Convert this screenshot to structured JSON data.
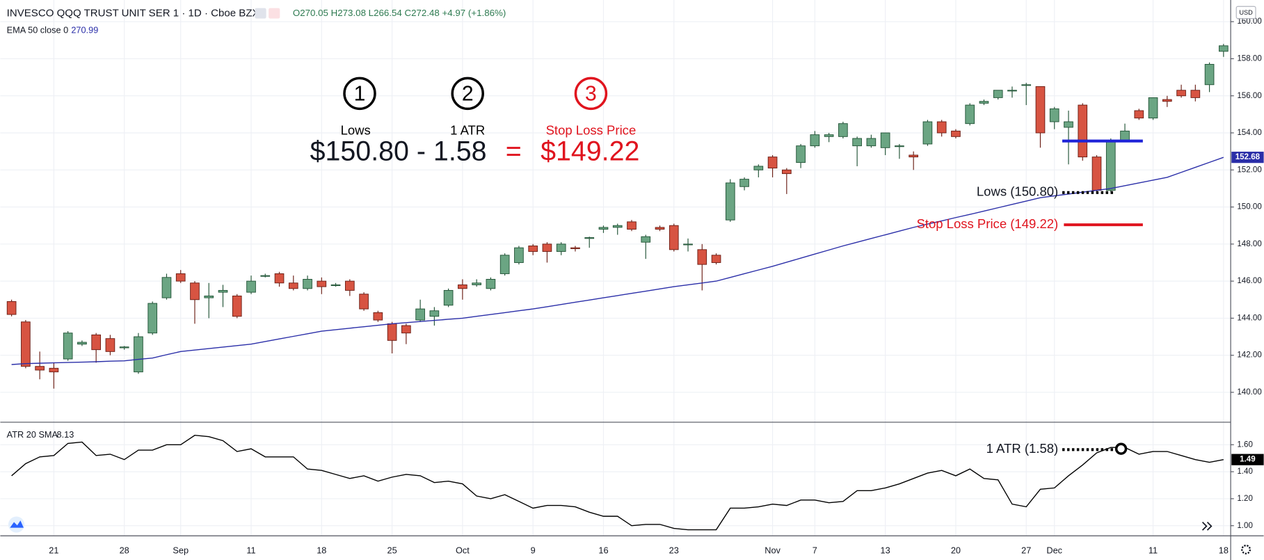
{
  "chart_data": [
    {
      "type": "candlestick",
      "title": "INVESCO QQQ TRUST UNIT SER 1 · 1D · Cboe BZX",
      "ohlc_legend": "O270.05 H273.08 L266.54 C272.48 +4.97 (+1.86%)",
      "currency": "USD",
      "indicator_legend": {
        "name": "EMA 50 close 0",
        "value": "270.99"
      },
      "categories": [
        null,
        null,
        null,
        "21",
        null,
        null,
        null,
        null,
        "28",
        null,
        null,
        null,
        "Sep",
        null,
        null,
        null,
        null,
        "11",
        null,
        null,
        null,
        null,
        "18",
        null,
        null,
        null,
        null,
        "25",
        null,
        null,
        null,
        null,
        "Oct",
        null,
        null,
        null,
        null,
        "9",
        null,
        null,
        null,
        null,
        "16",
        null,
        null,
        null,
        null,
        "23",
        null,
        null,
        null,
        null,
        null,
        null,
        "Nov",
        null,
        null,
        "7",
        null,
        null,
        null,
        null,
        "13",
        null,
        null,
        null,
        null,
        "20",
        null,
        null,
        null,
        null,
        "27",
        null,
        "Dec",
        null,
        null,
        null,
        null,
        null,
        null,
        "11",
        null,
        null,
        null,
        null,
        "18"
      ],
      "open": [
        144.9,
        143.8,
        141.4,
        141.3,
        141.8,
        142.6,
        143.1,
        142.9,
        142.4,
        141.1,
        143.2,
        145.1,
        146.4,
        145.9,
        145.1,
        145.4,
        145.2,
        145.4,
        146.3,
        146.4,
        145.9,
        145.6,
        146.0,
        145.8,
        146.0,
        145.3,
        144.3,
        143.7,
        143.6,
        143.9,
        144.1,
        144.7,
        145.8,
        145.8,
        145.6,
        146.4,
        147.0,
        147.9,
        148.0,
        147.6,
        147.8,
        148.3,
        148.8,
        148.9,
        149.2,
        148.1,
        148.9,
        149.0,
        148.0,
        147.7,
        147.4,
        149.3,
        151.1,
        152.0,
        152.7,
        152.0,
        152.4,
        153.3,
        153.8,
        153.8,
        153.3,
        153.3,
        153.2,
        153.3,
        152.8,
        153.4,
        154.6,
        154.1,
        154.5,
        155.6,
        155.9,
        156.3,
        156.6,
        156.5,
        154.6,
        154.3,
        155.5,
        152.7,
        150.9,
        153.6,
        155.2,
        154.8,
        155.8,
        156.3,
        156.3,
        156.6,
        158.4
      ],
      "high": [
        145.0,
        143.9,
        142.2,
        141.6,
        143.3,
        142.8,
        143.2,
        143.1,
        142.5,
        143.2,
        144.9,
        146.4,
        146.6,
        146.0,
        145.9,
        145.8,
        145.3,
        146.3,
        146.4,
        146.5,
        146.3,
        146.3,
        146.2,
        145.9,
        146.1,
        145.4,
        144.4,
        143.8,
        143.7,
        145.0,
        144.6,
        145.6,
        146.1,
        146.1,
        146.2,
        147.5,
        147.9,
        148.0,
        148.1,
        148.1,
        147.9,
        148.4,
        149.0,
        149.1,
        149.3,
        148.5,
        149.0,
        149.1,
        148.3,
        148.0,
        147.5,
        151.5,
        151.6,
        152.3,
        152.8,
        152.1,
        153.4,
        154.1,
        154.0,
        154.6,
        153.8,
        153.9,
        154.0,
        153.4,
        153.0,
        154.7,
        154.7,
        154.2,
        155.6,
        155.8,
        156.3,
        156.5,
        156.7,
        156.5,
        155.4,
        155.2,
        155.6,
        152.8,
        153.7,
        154.5,
        155.3,
        155.9,
        156.0,
        156.6,
        156.6,
        157.8,
        158.8
      ],
      "low": [
        144.1,
        141.3,
        140.7,
        140.2,
        141.7,
        142.5,
        141.6,
        142.0,
        142.3,
        141.0,
        143.1,
        145.0,
        145.9,
        143.7,
        144.0,
        144.6,
        144.0,
        145.3,
        146.2,
        145.7,
        145.5,
        145.5,
        145.3,
        145.7,
        145.2,
        144.4,
        143.8,
        142.1,
        142.6,
        143.8,
        143.6,
        144.6,
        145.0,
        145.7,
        145.5,
        146.3,
        146.9,
        147.4,
        147.0,
        147.4,
        147.6,
        147.8,
        148.6,
        148.5,
        148.7,
        147.2,
        148.7,
        147.6,
        147.6,
        145.5,
        146.9,
        149.2,
        150.9,
        151.6,
        151.6,
        150.7,
        152.1,
        153.2,
        153.5,
        153.7,
        152.2,
        153.2,
        152.8,
        152.6,
        152.0,
        153.3,
        153.8,
        153.7,
        154.4,
        155.5,
        155.8,
        155.9,
        155.5,
        153.2,
        154.2,
        152.3,
        152.5,
        150.8,
        150.8,
        153.5,
        154.7,
        154.7,
        155.4,
        155.9,
        155.7,
        156.2,
        158.1
      ],
      "close": [
        144.2,
        141.4,
        141.2,
        141.1,
        143.2,
        142.7,
        142.3,
        142.2,
        142.45,
        143.0,
        144.8,
        146.2,
        146.0,
        145.0,
        145.2,
        145.5,
        144.1,
        146.0,
        146.3,
        145.9,
        145.6,
        146.1,
        145.7,
        145.8,
        145.5,
        144.5,
        143.9,
        142.8,
        143.2,
        144.5,
        144.4,
        145.5,
        145.6,
        145.9,
        146.1,
        147.4,
        147.8,
        147.6,
        147.6,
        148.0,
        147.75,
        148.35,
        148.9,
        149.0,
        148.8,
        148.4,
        148.8,
        147.7,
        148.0,
        146.9,
        147.0,
        151.3,
        151.5,
        152.2,
        152.1,
        151.8,
        153.3,
        153.9,
        153.9,
        154.5,
        153.7,
        153.7,
        154.0,
        153.3,
        152.7,
        154.6,
        154.0,
        153.8,
        155.5,
        155.7,
        156.3,
        156.3,
        156.6,
        154.0,
        155.3,
        154.6,
        152.7,
        150.9,
        153.6,
        154.1,
        154.8,
        155.9,
        155.7,
        156.0,
        155.9,
        157.7,
        158.7
      ],
      "up_color": "#6ba583",
      "up_border": "#225437",
      "down_color": "#d75442",
      "down_border": "#6b1e15",
      "series": [
        {
          "name": "EMA 50 close 0",
          "color": "#2a2ea8",
          "values": [
            141.5,
            141.55,
            141.57,
            141.59,
            141.61,
            141.63,
            141.65,
            141.68,
            141.7,
            141.78,
            141.85,
            142.03,
            142.2,
            142.28,
            142.36,
            142.44,
            142.52,
            142.6,
            142.74,
            142.88,
            143.02,
            143.16,
            143.3,
            143.38,
            143.46,
            143.54,
            143.62,
            143.7,
            143.76,
            143.82,
            143.88,
            143.94,
            144.0,
            144.1,
            144.2,
            144.3,
            144.4,
            144.5,
            144.62,
            144.74,
            144.86,
            144.98,
            145.1,
            145.22,
            145.34,
            145.46,
            145.58,
            145.7,
            145.8,
            145.9,
            146.0,
            146.2,
            146.4,
            146.6,
            146.8,
            147.02,
            147.24,
            147.46,
            147.68,
            147.9,
            148.1,
            148.3,
            148.5,
            148.7,
            148.9,
            149.08,
            149.25,
            149.43,
            149.6,
            149.78,
            149.96,
            150.14,
            150.32,
            150.5,
            150.6,
            150.7,
            150.8,
            150.9,
            151.0,
            151.15,
            151.3,
            151.45,
            151.6,
            151.87,
            152.14,
            152.41,
            152.68
          ]
        }
      ],
      "ylim": [
        138.43,
        161.17
      ],
      "yticks": [
        {
          "value": 140,
          "label": "140.00"
        },
        {
          "value": 142,
          "label": "142.00"
        },
        {
          "value": 144,
          "label": "144.00"
        },
        {
          "value": 146,
          "label": "146.00"
        },
        {
          "value": 148,
          "label": "148.00"
        },
        {
          "value": 150,
          "label": "150.00"
        },
        {
          "value": 152,
          "label": "152.00"
        },
        {
          "value": 154,
          "label": "154.00"
        },
        {
          "value": 156,
          "label": "156.00"
        },
        {
          "value": 158,
          "label": "158.00"
        },
        {
          "value": 160,
          "label": "160.00"
        }
      ],
      "grid": true,
      "steps": [
        {
          "number": "1",
          "label": "Lows",
          "color": "#000000"
        },
        {
          "number": "2",
          "label": "1 ATR",
          "color": "#000000"
        },
        {
          "number": "3",
          "label": "Stop Loss Price",
          "color": "#e0141e"
        }
      ],
      "formula": {
        "left": "$150.80 - 1.58",
        "equals": "=",
        "result": "$149.22"
      },
      "callouts": {
        "lows": "Lows (150.80)",
        "stop": "Stop Loss Price (149.22)"
      }
    },
    {
      "type": "line",
      "series": [
        {
          "name": "ATR 20 SMA",
          "color": "#000000",
          "values": [
            1.37,
            1.46,
            1.51,
            1.52,
            1.61,
            1.62,
            1.52,
            1.53,
            1.49,
            1.56,
            1.56,
            1.6,
            1.6,
            1.67,
            1.66,
            1.63,
            1.55,
            1.57,
            1.51,
            1.51,
            1.51,
            1.42,
            1.41,
            1.38,
            1.35,
            1.37,
            1.33,
            1.36,
            1.38,
            1.37,
            1.32,
            1.33,
            1.31,
            1.22,
            1.2,
            1.23,
            1.18,
            1.13,
            1.15,
            1.15,
            1.14,
            1.1,
            1.07,
            1.07,
            1.0,
            1.01,
            1.01,
            0.98,
            0.97,
            0.97,
            0.97,
            1.13,
            1.13,
            1.14,
            1.16,
            1.15,
            1.19,
            1.19,
            1.17,
            1.18,
            1.26,
            1.26,
            1.28,
            1.31,
            1.35,
            1.39,
            1.41,
            1.37,
            1.42,
            1.35,
            1.34,
            1.16,
            1.14,
            1.27,
            1.28,
            1.37,
            1.45,
            1.54,
            1.58,
            1.58,
            1.53,
            1.55,
            1.55,
            1.52,
            1.49,
            1.47,
            1.49
          ]
        }
      ],
      "indicator_legend": {
        "name": "ATR 20 SMA",
        "value": "8.13"
      },
      "ylim": [
        0.925,
        1.755
      ],
      "yticks": [
        {
          "value": 1.0,
          "label": "1.00"
        },
        {
          "value": 1.2,
          "label": "1.20"
        },
        {
          "value": 1.4,
          "label": "1.40"
        },
        {
          "value": 1.6,
          "label": "1.60"
        }
      ],
      "grid": true,
      "callout": "1 ATR (1.58)"
    }
  ]
}
